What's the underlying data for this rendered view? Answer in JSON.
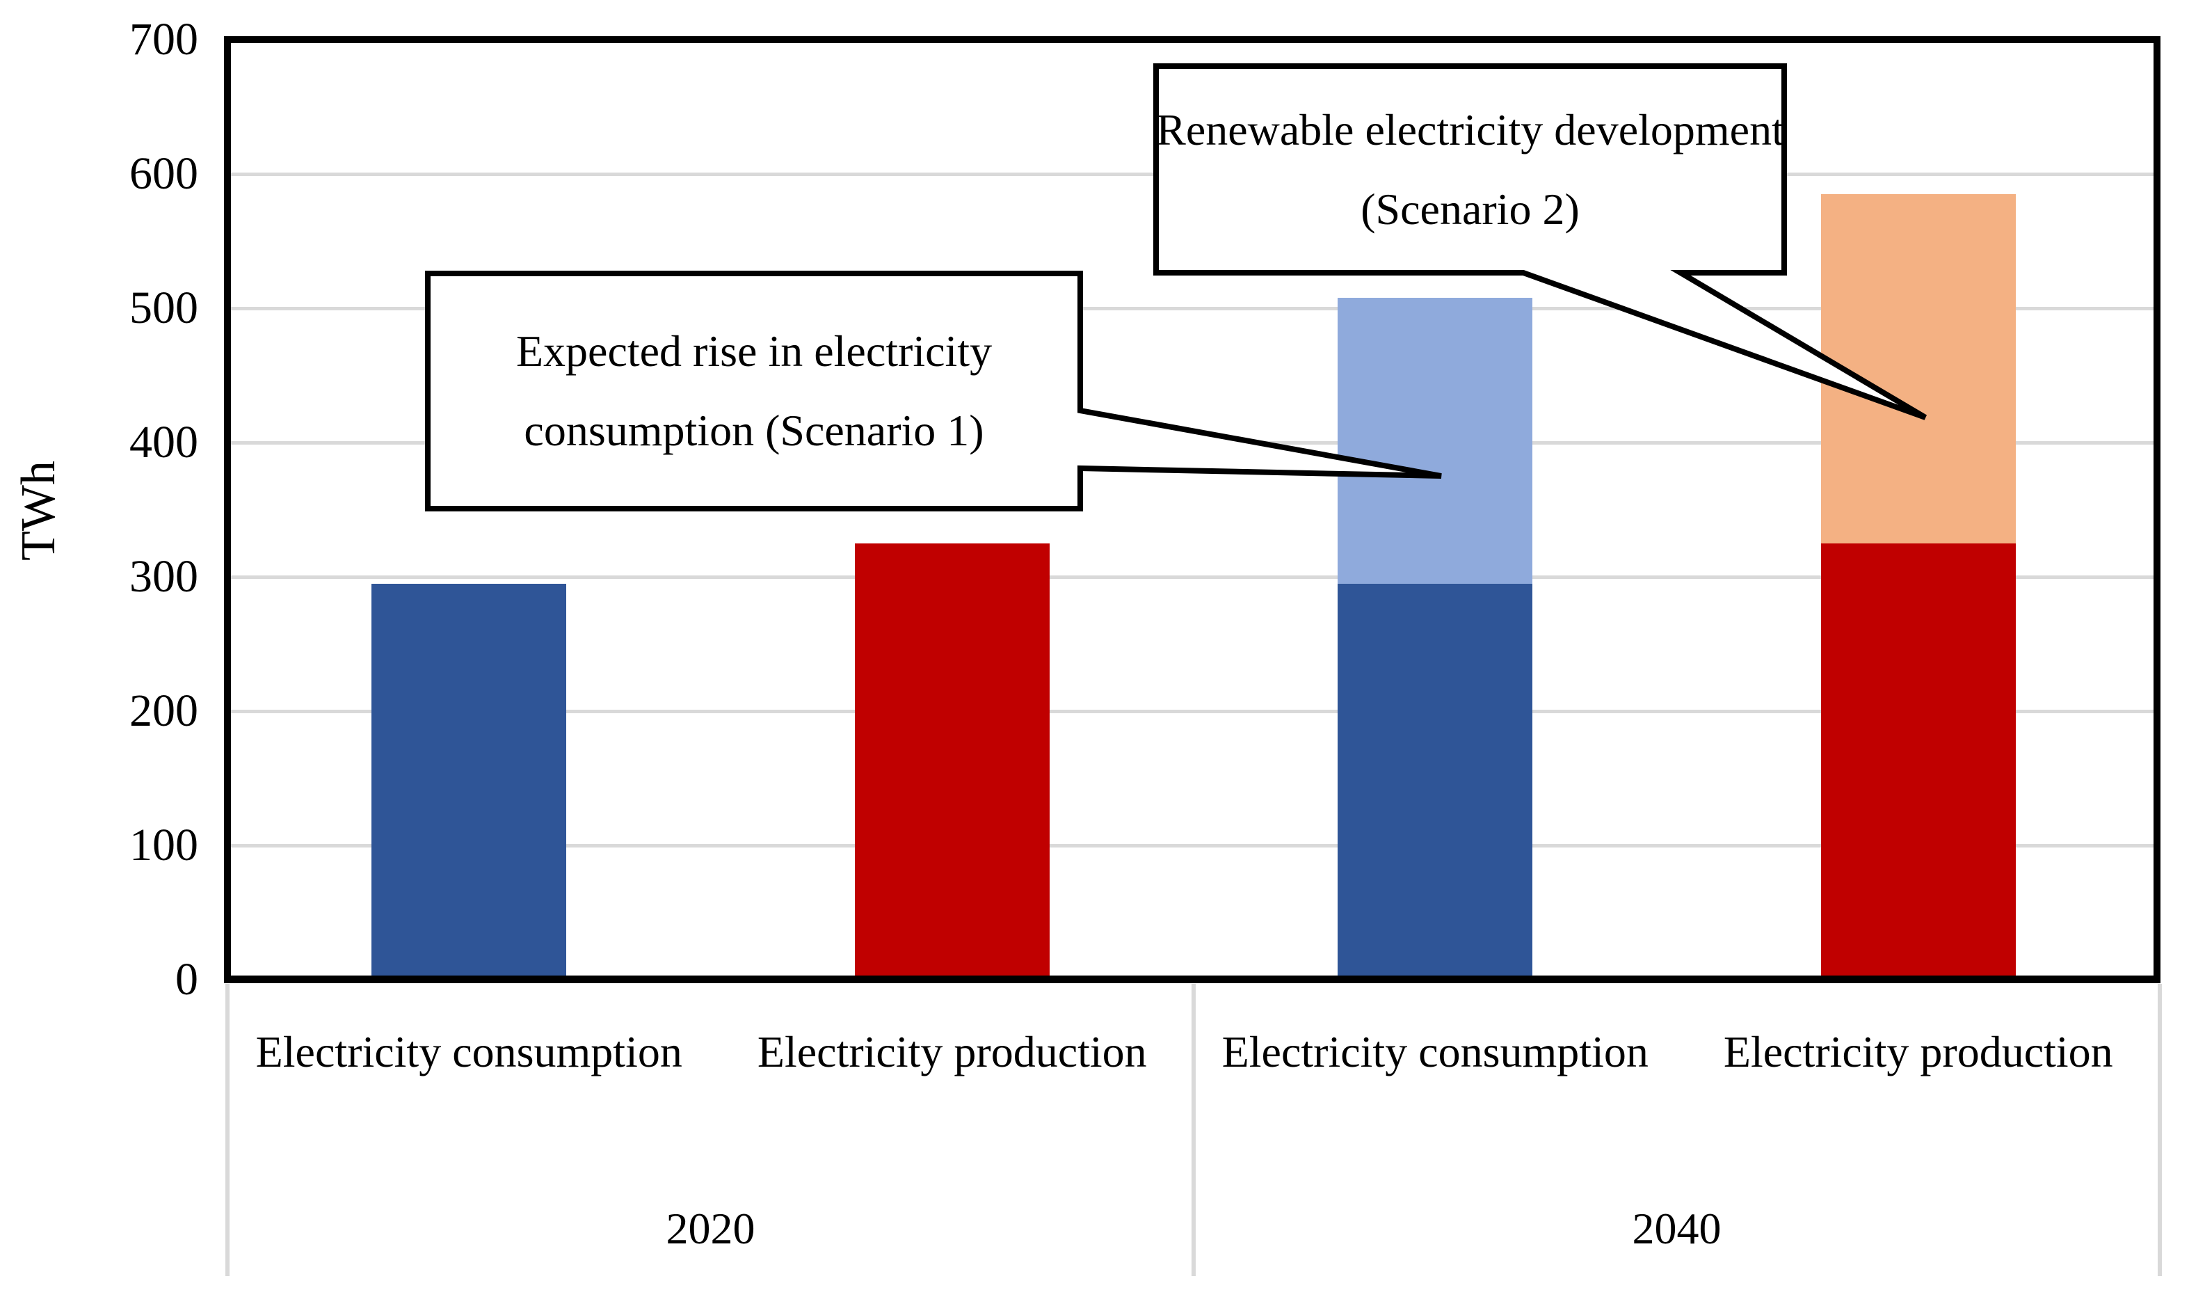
{
  "chart_data": {
    "type": "bar",
    "stacked": true,
    "title": "",
    "xlabel": "",
    "ylabel": "TWh",
    "ylim": [
      0,
      700
    ],
    "ytick_step": 100,
    "yticks": [
      "0",
      "100",
      "200",
      "300",
      "400",
      "500",
      "600",
      "700"
    ],
    "grid": "horizontal gridlines every 100 TWh",
    "legend_position": "none",
    "groups": [
      {
        "label": "2020"
      },
      {
        "label": "2040"
      }
    ],
    "categories": [
      "Electricity consumption",
      "Electricity production",
      "Electricity consumption",
      "Electricity production"
    ],
    "bars": [
      {
        "group": "2020",
        "category": "Electricity consumption",
        "total": 295,
        "segments": [
          {
            "name": "electricity-consumption-2020",
            "value": 295,
            "color": "#2F5597"
          }
        ]
      },
      {
        "group": "2020",
        "category": "Electricity production",
        "total": 325,
        "segments": [
          {
            "name": "electricity-production-2020",
            "value": 325,
            "color": "#C00000"
          }
        ]
      },
      {
        "group": "2040",
        "category": "Electricity consumption",
        "total": 508,
        "segments": [
          {
            "name": "base-consumption-2040",
            "value": 295,
            "color": "#2F5597"
          },
          {
            "name": "expected-rise-scenario-1",
            "value": 213,
            "color": "#8FAADC"
          }
        ]
      },
      {
        "group": "2040",
        "category": "Electricity production",
        "total": 585,
        "segments": [
          {
            "name": "base-production-2040",
            "value": 325,
            "color": "#C00000"
          },
          {
            "name": "renewable-development-scenario-2",
            "value": 260,
            "color": "#F4B183"
          }
        ]
      }
    ],
    "annotations": [
      {
        "text": "Expected rise in electricity consumption (Scenario 1)",
        "points_to": "upper (light blue) segment of 2040 electricity consumption bar"
      },
      {
        "text": "Renewable electricity development (Scenario 2)",
        "points_to": "upper (orange) segment of 2040 electricity production bar"
      }
    ],
    "colors": {
      "dark_blue": "#2F5597",
      "light_blue": "#8FAADC",
      "dark_red": "#C00000",
      "light_orange": "#F4B183",
      "gridline": "#D9D9D9",
      "axis": "#000000",
      "callout_fill": "#FFFFFF",
      "callout_border": "#000000"
    }
  }
}
